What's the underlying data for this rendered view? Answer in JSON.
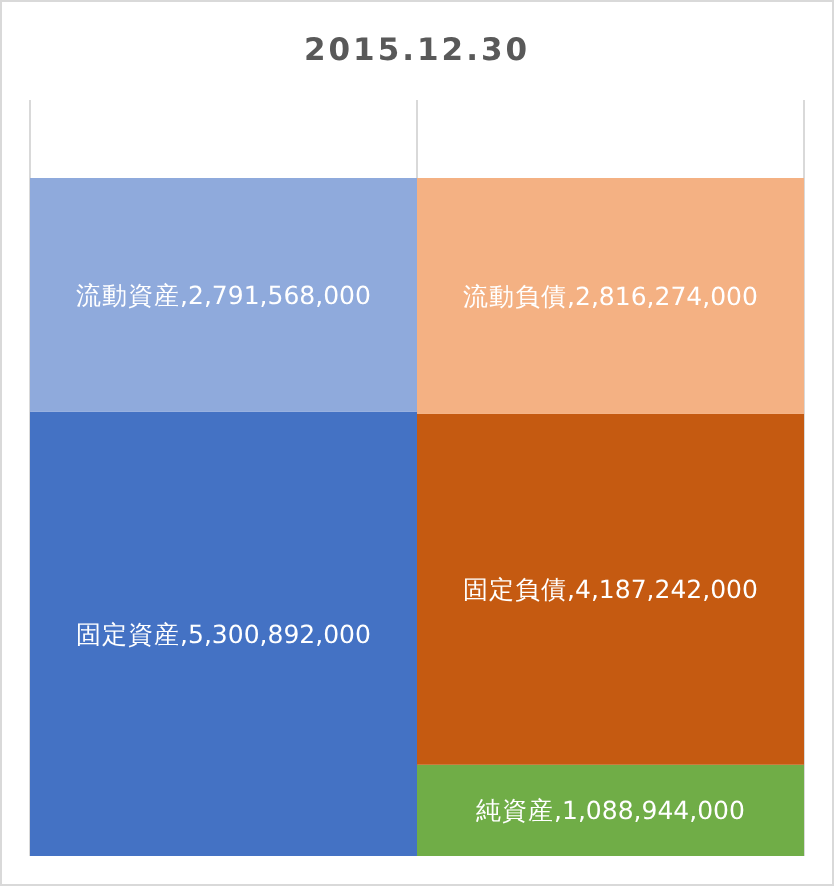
{
  "chart_data": {
    "type": "bar",
    "title": "2015.12.30",
    "stacked": true,
    "categories": [
      null,
      null
    ],
    "series": [
      {
        "color": "#4472c4",
        "values": [
          5300892000,
          null
        ],
        "value_labels": [
          "固定資産,5,300,892,000",
          null
        ]
      },
      {
        "color": "#8faadc",
        "values": [
          2791568000,
          null
        ],
        "value_labels": [
          "流動資産,2,791,568,000",
          null
        ]
      },
      {
        "color": "#70ad47",
        "values": [
          null,
          1088944000
        ],
        "value_labels": [
          null,
          "純資産,1,088,944,000"
        ]
      },
      {
        "color": "#c55a11",
        "values": [
          null,
          4187242000
        ],
        "value_labels": [
          null,
          "固定負債,4,187,242,000"
        ]
      },
      {
        "color": "#f4b183",
        "values": [
          null,
          2816274000
        ],
        "value_labels": [
          null,
          "流動負債,2,816,274,000"
        ]
      }
    ],
    "grid": "x"
  }
}
